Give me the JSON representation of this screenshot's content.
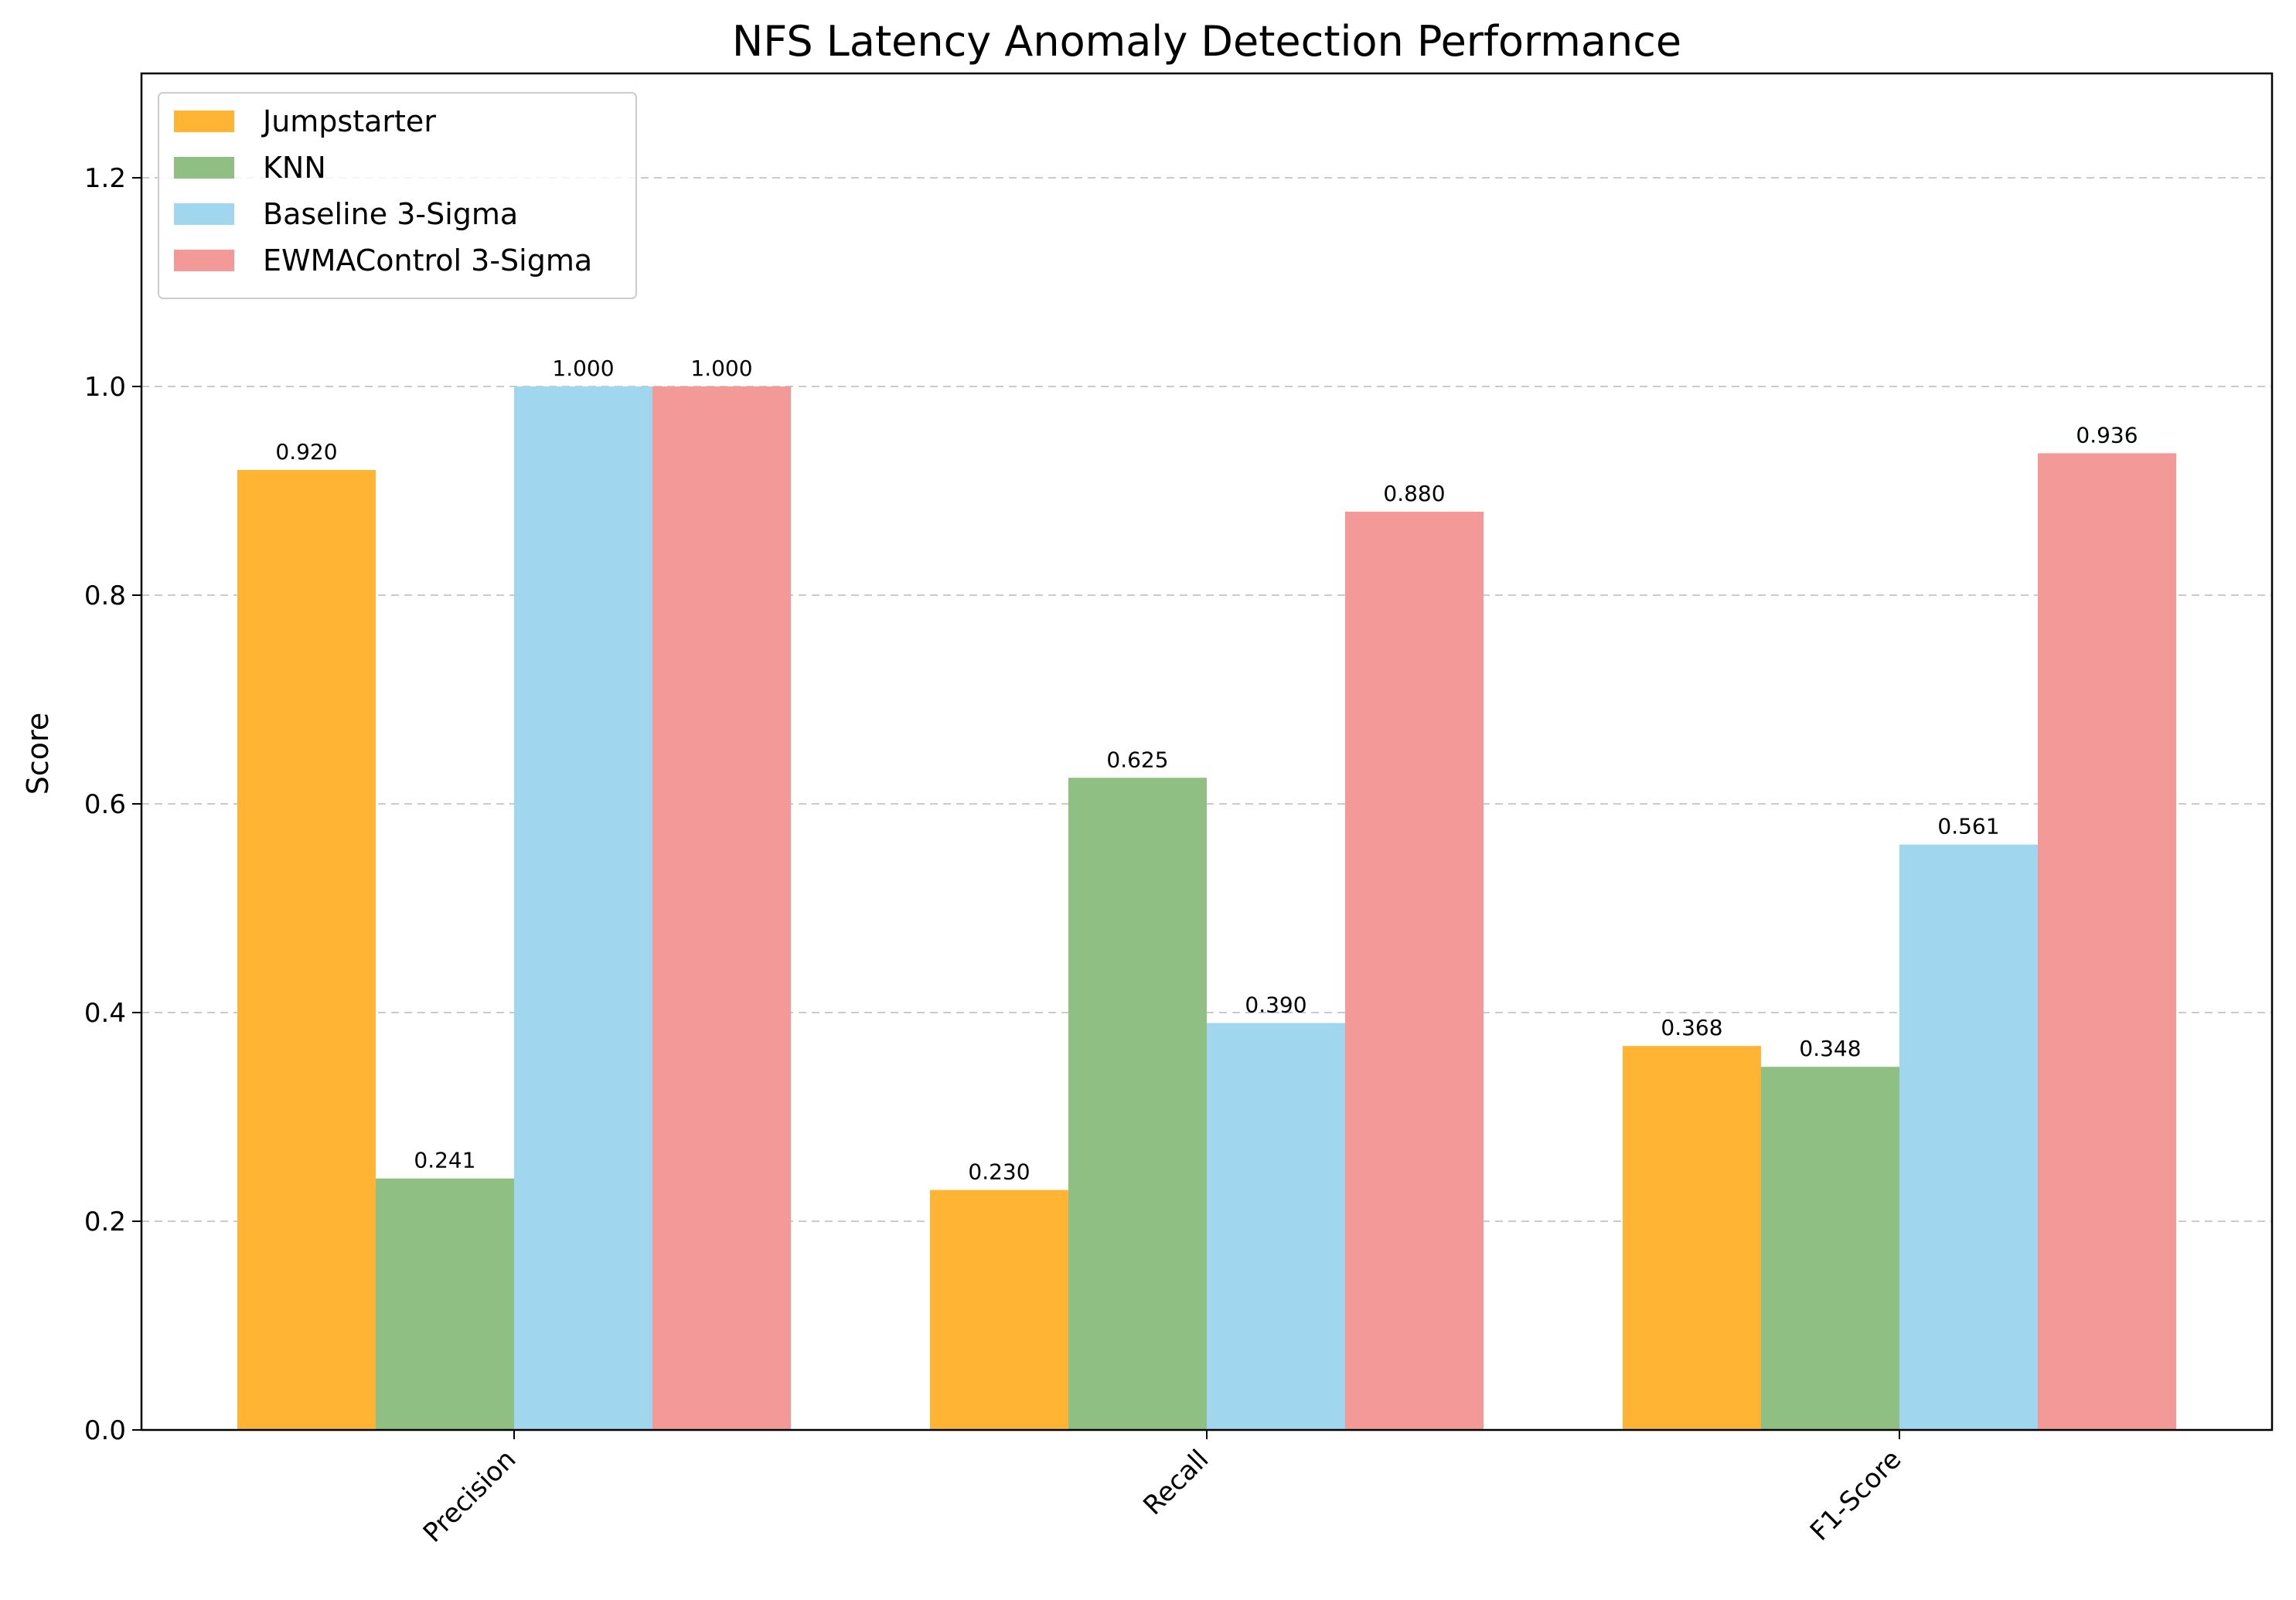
{
  "chart_data": {
    "type": "bar",
    "title": "NFS Latency Anomaly Detection Performance",
    "xlabel": "",
    "ylabel": "Score",
    "ylim": [
      0,
      1.3
    ],
    "yticks": [
      "0.0",
      "0.2",
      "0.4",
      "0.6",
      "0.8",
      "1.0",
      "1.2"
    ],
    "categories": [
      "Precision",
      "Recall",
      "F1-Score"
    ],
    "grid": "y-dashed",
    "legend_position": "top-left",
    "series": [
      {
        "name": "Jumpstarter",
        "color": "#ffb533",
        "values": [
          0.92,
          0.23,
          0.368
        ],
        "labels": [
          "0.920",
          "0.230",
          "0.368"
        ]
      },
      {
        "name": "KNN",
        "color": "#8fbf82",
        "values": [
          0.241,
          0.625,
          0.348
        ],
        "labels": [
          "0.241",
          "0.625",
          "0.348"
        ]
      },
      {
        "name": "Baseline 3-Sigma",
        "color": "#a0d6ee",
        "values": [
          1.0,
          0.39,
          0.561
        ],
        "labels": [
          "1.000",
          "0.390",
          "0.561"
        ]
      },
      {
        "name": "EWMAControl 3-Sigma",
        "color": "#f39a99",
        "values": [
          1.0,
          0.88,
          0.936
        ],
        "labels": [
          "1.000",
          "0.880",
          "0.936"
        ]
      }
    ]
  }
}
